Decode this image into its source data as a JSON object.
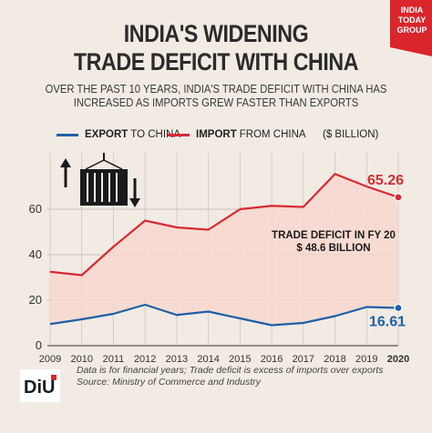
{
  "header": {
    "title_line1": "INDIA'S WIDENING",
    "title_line2": "TRADE DEFICIT WITH CHINA",
    "subtitle_line1": "OVER THE PAST 10 YEARS, INDIA'S TRADE DEFICIT WITH CHINA HAS",
    "subtitle_line2": "INCREASED AS IMPORTS GREW FASTER THAN EXPORTS",
    "brand_line1": "INDIA",
    "brand_line2": "TODAY",
    "brand_line3": "GROUP"
  },
  "legend": {
    "export_bold": "EXPORT",
    "export_rest": "TO CHINA",
    "import_bold": "IMPORT",
    "import_rest": "FROM CHINA",
    "unit": "($ BILLION)"
  },
  "chart_data": {
    "type": "line",
    "x": [
      "2009",
      "2010",
      "2011",
      "2012",
      "2013",
      "2014",
      "2015",
      "2016",
      "2017",
      "2018",
      "2019",
      "2020"
    ],
    "series": [
      {
        "name": "EXPORT TO CHINA",
        "color": "#1f5fa8",
        "values": [
          9.5,
          11.6,
          14,
          18,
          13.5,
          15,
          12,
          9,
          10,
          13,
          17,
          16.61
        ]
      },
      {
        "name": "IMPORT FROM CHINA",
        "color": "#d62b33",
        "values": [
          32.5,
          31,
          43.5,
          55,
          52,
          51,
          60,
          61.5,
          61,
          75.5,
          70,
          65.26
        ]
      }
    ],
    "fill_between": true,
    "fill_color": "#f8d8cf",
    "ylim": [
      0,
      80
    ],
    "yticks": [
      0,
      20,
      40,
      60
    ],
    "grid": true,
    "annotation_line1": "TRADE DEFICIT IN FY 20",
    "annotation_line2": "$ 48.6 BILLION",
    "end_label_import": "65.26",
    "end_label_export": "16.61"
  },
  "footer": {
    "brand": "DiU",
    "note": "Data is for financial years; Trade deficit is excess of imports over exports",
    "source": "Source: Ministry of Commerce and Industry"
  }
}
